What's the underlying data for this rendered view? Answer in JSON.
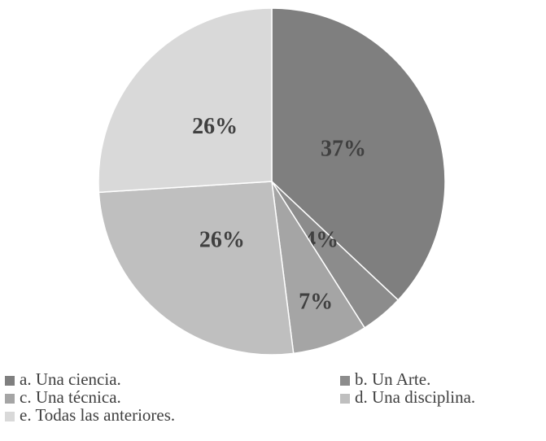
{
  "chart_data": {
    "type": "pie",
    "categories": [
      "a. Una ciencia.",
      "b. Un Arte.",
      "c. Una técnica.",
      "d. Una disciplina.",
      "e. Todas las anteriores."
    ],
    "values": [
      37,
      4,
      7,
      26,
      26
    ],
    "value_labels": [
      "37%",
      "4%",
      "7%",
      "26%",
      "26%"
    ],
    "colors": [
      "#7f7f7f",
      "#8c8c8c",
      "#a5a5a5",
      "#bfbfbf",
      "#d9d9d9"
    ]
  }
}
